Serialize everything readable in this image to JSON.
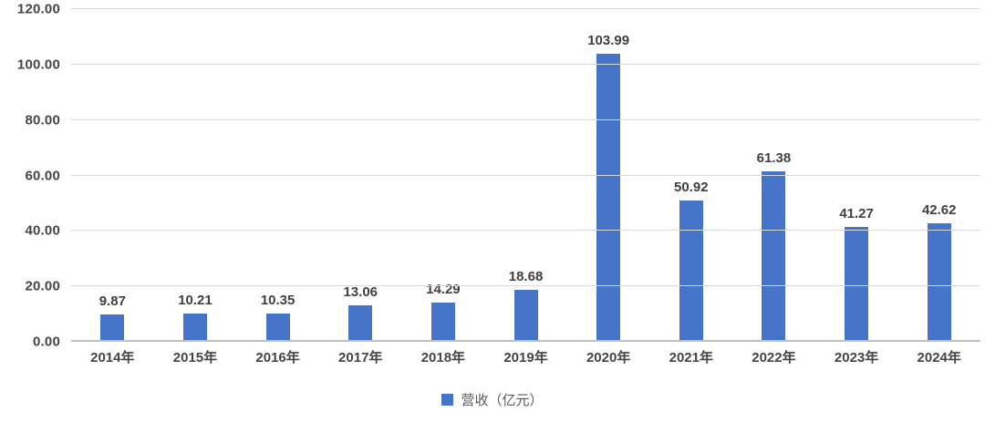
{
  "chart_data": {
    "type": "bar",
    "title": "",
    "xlabel": "",
    "ylabel": "",
    "categories": [
      "2014年",
      "2015年",
      "2016年",
      "2017年",
      "2018年",
      "2019年",
      "2020年",
      "2021年",
      "2022年",
      "2023年",
      "2024年"
    ],
    "series": [
      {
        "name": "营收（亿元）",
        "values": [
          9.87,
          10.21,
          10.35,
          13.06,
          14.29,
          18.68,
          103.99,
          50.92,
          61.38,
          41.27,
          42.62
        ]
      }
    ],
    "value_labels": [
      "9.87",
      "10.21",
      "10.35",
      "13.06",
      "14.29",
      "18.68",
      "103.99",
      "50.92",
      "61.38",
      "41.27",
      "42.62"
    ],
    "ylim": [
      0,
      120
    ],
    "ytick_step": 20,
    "ytick_labels": [
      "0.00",
      "20.00",
      "40.00",
      "60.00",
      "80.00",
      "100.00",
      "120.00"
    ],
    "grid": true,
    "legend_position": "bottom",
    "bar_color": "#4674c8"
  },
  "legend": {
    "label": "营收（亿元）",
    "marker_color": "#4674c8"
  }
}
